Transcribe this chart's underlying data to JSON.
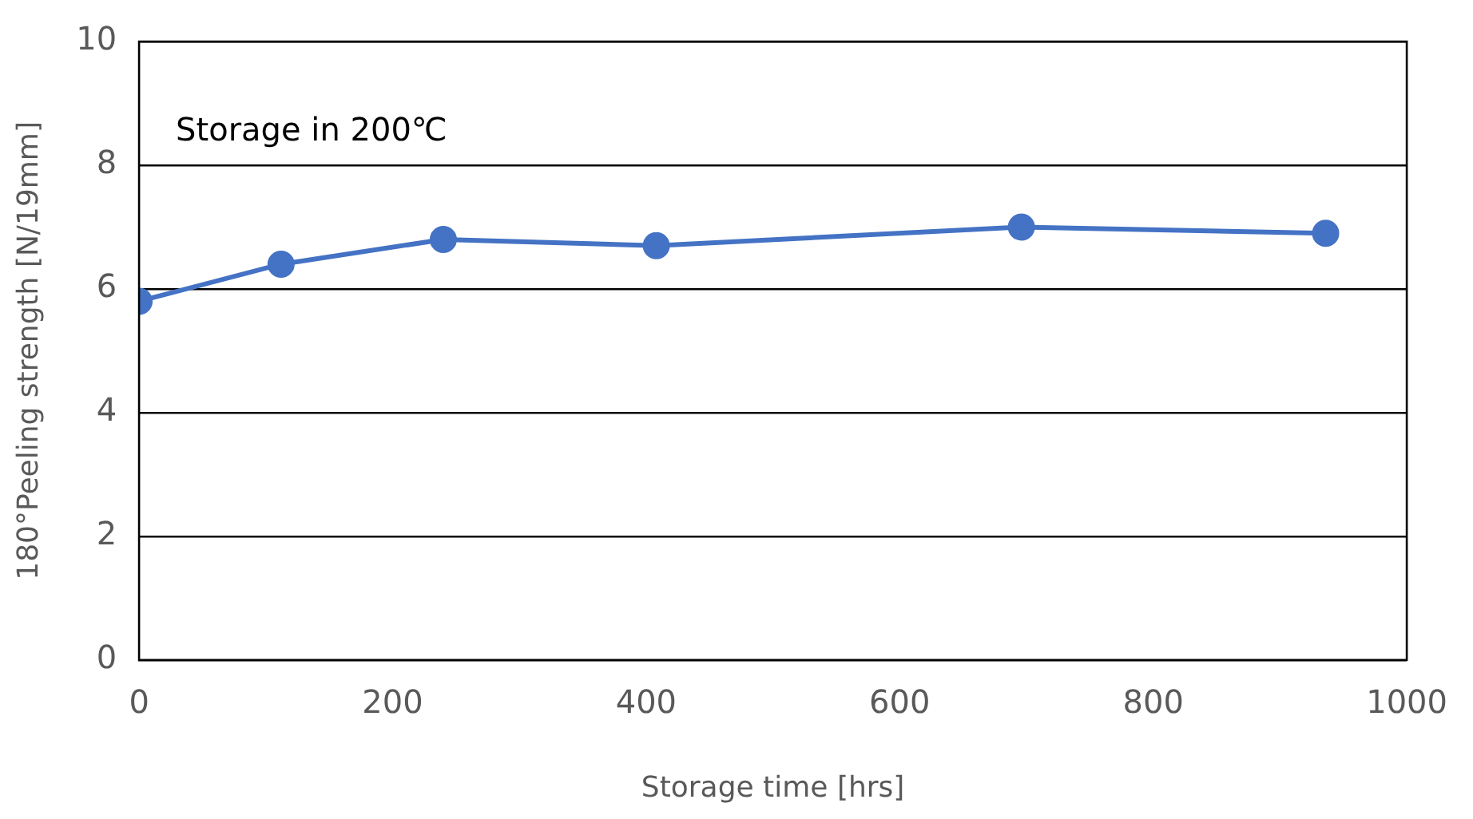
{
  "chart_data": {
    "type": "line",
    "xlabel": "Storage time [hrs]",
    "ylabel": "180°Peeling strength [N/19mm]",
    "x": [
      0,
      112,
      240,
      408,
      696,
      936
    ],
    "series": [
      {
        "color": "#4472c4",
        "values": [
          5.8,
          6.4,
          6.8,
          6.7,
          7.0,
          6.9
        ]
      }
    ],
    "xlim": [
      0,
      1000
    ],
    "xticks": [
      0,
      200,
      400,
      600,
      800,
      1000
    ],
    "ylim": [
      0,
      10
    ],
    "yticks": [
      0,
      2,
      4,
      6,
      8,
      10
    ],
    "grid": "y",
    "legend": false,
    "marker": "circle",
    "line_style": "solid",
    "annotations": [
      "Storage in 200℃"
    ]
  }
}
